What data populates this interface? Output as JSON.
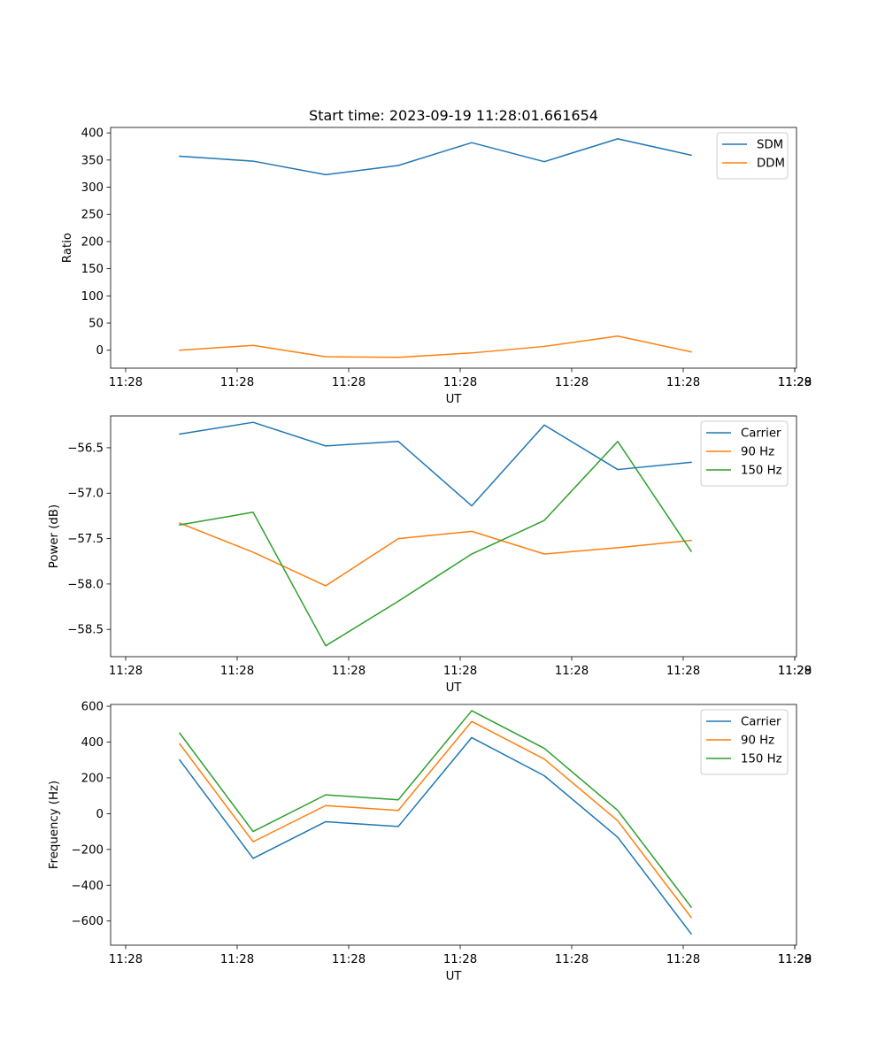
{
  "chart_data": [
    {
      "type": "line",
      "title": "Start time: 2023-09-19 11:28:01.661654",
      "xlabel": "UT",
      "ylabel": "Ratio",
      "x_ticks": [
        "11:28",
        "11:28",
        "11:28",
        "11:28",
        "11:28",
        "11:28",
        "11:28",
        "11:29"
      ],
      "y_ticks": [
        0,
        50,
        100,
        150,
        200,
        250,
        300,
        350,
        400
      ],
      "ylim": [
        -33,
        410
      ],
      "legend": "top-right",
      "series": [
        {
          "name": "SDM",
          "color": "#1f77b4",
          "values": [
            357,
            348,
            323,
            340,
            382,
            347,
            389,
            359
          ]
        },
        {
          "name": "DDM",
          "color": "#ff7f0e",
          "values": [
            0,
            9,
            -12,
            -13,
            -5,
            7,
            26,
            -3
          ]
        }
      ]
    },
    {
      "type": "line",
      "title": "",
      "xlabel": "UT",
      "ylabel": "Power (dB)",
      "x_ticks": [
        "11:28",
        "11:28",
        "11:28",
        "11:28",
        "11:28",
        "11:28",
        "11:28",
        "11:29"
      ],
      "y_ticks": [
        -56.5,
        -57.0,
        -57.5,
        -58.0,
        -58.5
      ],
      "y_tick_labels": [
        "−56.5",
        "−57.0",
        "−57.5",
        "−58.0",
        "−58.5"
      ],
      "ylim": [
        -58.8,
        -56.15
      ],
      "legend": "top-right",
      "series": [
        {
          "name": "Carrier",
          "color": "#1f77b4",
          "values": [
            -56.35,
            -56.22,
            -56.48,
            -56.43,
            -57.14,
            -56.25,
            -56.74,
            -56.66
          ]
        },
        {
          "name": "90 Hz",
          "color": "#ff7f0e",
          "values": [
            -57.33,
            -57.65,
            -58.02,
            -57.5,
            -57.42,
            -57.67,
            -57.6,
            -57.52
          ]
        },
        {
          "name": "150 Hz",
          "color": "#2ca02c",
          "values": [
            -57.35,
            -57.21,
            -58.68,
            -58.19,
            -57.67,
            -57.3,
            -56.43,
            -57.64
          ]
        }
      ]
    },
    {
      "type": "line",
      "title": "",
      "xlabel": "UT",
      "ylabel": "Frequency (Hz)",
      "x_ticks": [
        "11:28",
        "11:28",
        "11:28",
        "11:28",
        "11:28",
        "11:28",
        "11:28",
        "11:29"
      ],
      "y_ticks": [
        600,
        400,
        200,
        0,
        -200,
        -400,
        -600
      ],
      "y_tick_labels": [
        "600",
        "400",
        "200",
        "0",
        "−200",
        "−400",
        "−600"
      ],
      "ylim": [
        -735,
        610
      ],
      "legend": "top-right",
      "series": [
        {
          "name": "Carrier",
          "color": "#1f77b4",
          "values": [
            300,
            -250,
            -45,
            -72,
            425,
            212,
            -132,
            -672
          ]
        },
        {
          "name": "90 Hz",
          "color": "#ff7f0e",
          "values": [
            390,
            -157,
            45,
            18,
            515,
            305,
            -40,
            -580
          ]
        },
        {
          "name": "150 Hz",
          "color": "#2ca02c",
          "values": [
            450,
            -100,
            105,
            77,
            575,
            365,
            18,
            -522
          ]
        }
      ]
    }
  ]
}
